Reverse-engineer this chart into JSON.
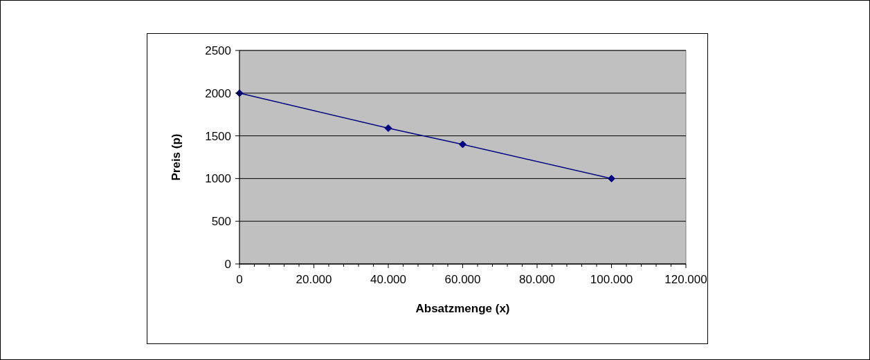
{
  "chart_data": {
    "type": "line",
    "xlabel": "Absatzmenge (x)",
    "ylabel": "Preis (p)",
    "x": [
      0,
      40000,
      60000,
      100000
    ],
    "series": [
      {
        "color": "#000080",
        "values": [
          2000,
          1590,
          1400,
          1000
        ]
      }
    ],
    "xlim": [
      0,
      120000
    ],
    "xticks": [
      {
        "value": 0,
        "label": "0"
      },
      {
        "value": 4000,
        "label": null
      },
      {
        "value": 8000,
        "label": null
      },
      {
        "value": 12000,
        "label": null
      },
      {
        "value": 16000,
        "label": null
      },
      {
        "value": 20000,
        "label": "20.000"
      },
      {
        "value": 24000,
        "label": null
      },
      {
        "value": 28000,
        "label": null
      },
      {
        "value": 32000,
        "label": null
      },
      {
        "value": 36000,
        "label": null
      },
      {
        "value": 40000,
        "label": "40.000"
      },
      {
        "value": 44000,
        "label": null
      },
      {
        "value": 48000,
        "label": null
      },
      {
        "value": 52000,
        "label": null
      },
      {
        "value": 56000,
        "label": null
      },
      {
        "value": 60000,
        "label": "60.000"
      },
      {
        "value": 64000,
        "label": null
      },
      {
        "value": 68000,
        "label": null
      },
      {
        "value": 72000,
        "label": null
      },
      {
        "value": 76000,
        "label": null
      },
      {
        "value": 80000,
        "label": "80.000"
      },
      {
        "value": 84000,
        "label": null
      },
      {
        "value": 88000,
        "label": null
      },
      {
        "value": 92000,
        "label": null
      },
      {
        "value": 96000,
        "label": null
      },
      {
        "value": 100000,
        "label": "100.000"
      },
      {
        "value": 104000,
        "label": null
      },
      {
        "value": 108000,
        "label": null
      },
      {
        "value": 112000,
        "label": null
      },
      {
        "value": 116000,
        "label": null
      },
      {
        "value": 120000,
        "label": "120.000"
      }
    ],
    "ylim": [
      0,
      2500
    ],
    "yticks": [
      0,
      500,
      1000,
      1500,
      2000,
      2500
    ],
    "grid": "y",
    "marker": "diamond",
    "line_style": "solid"
  }
}
